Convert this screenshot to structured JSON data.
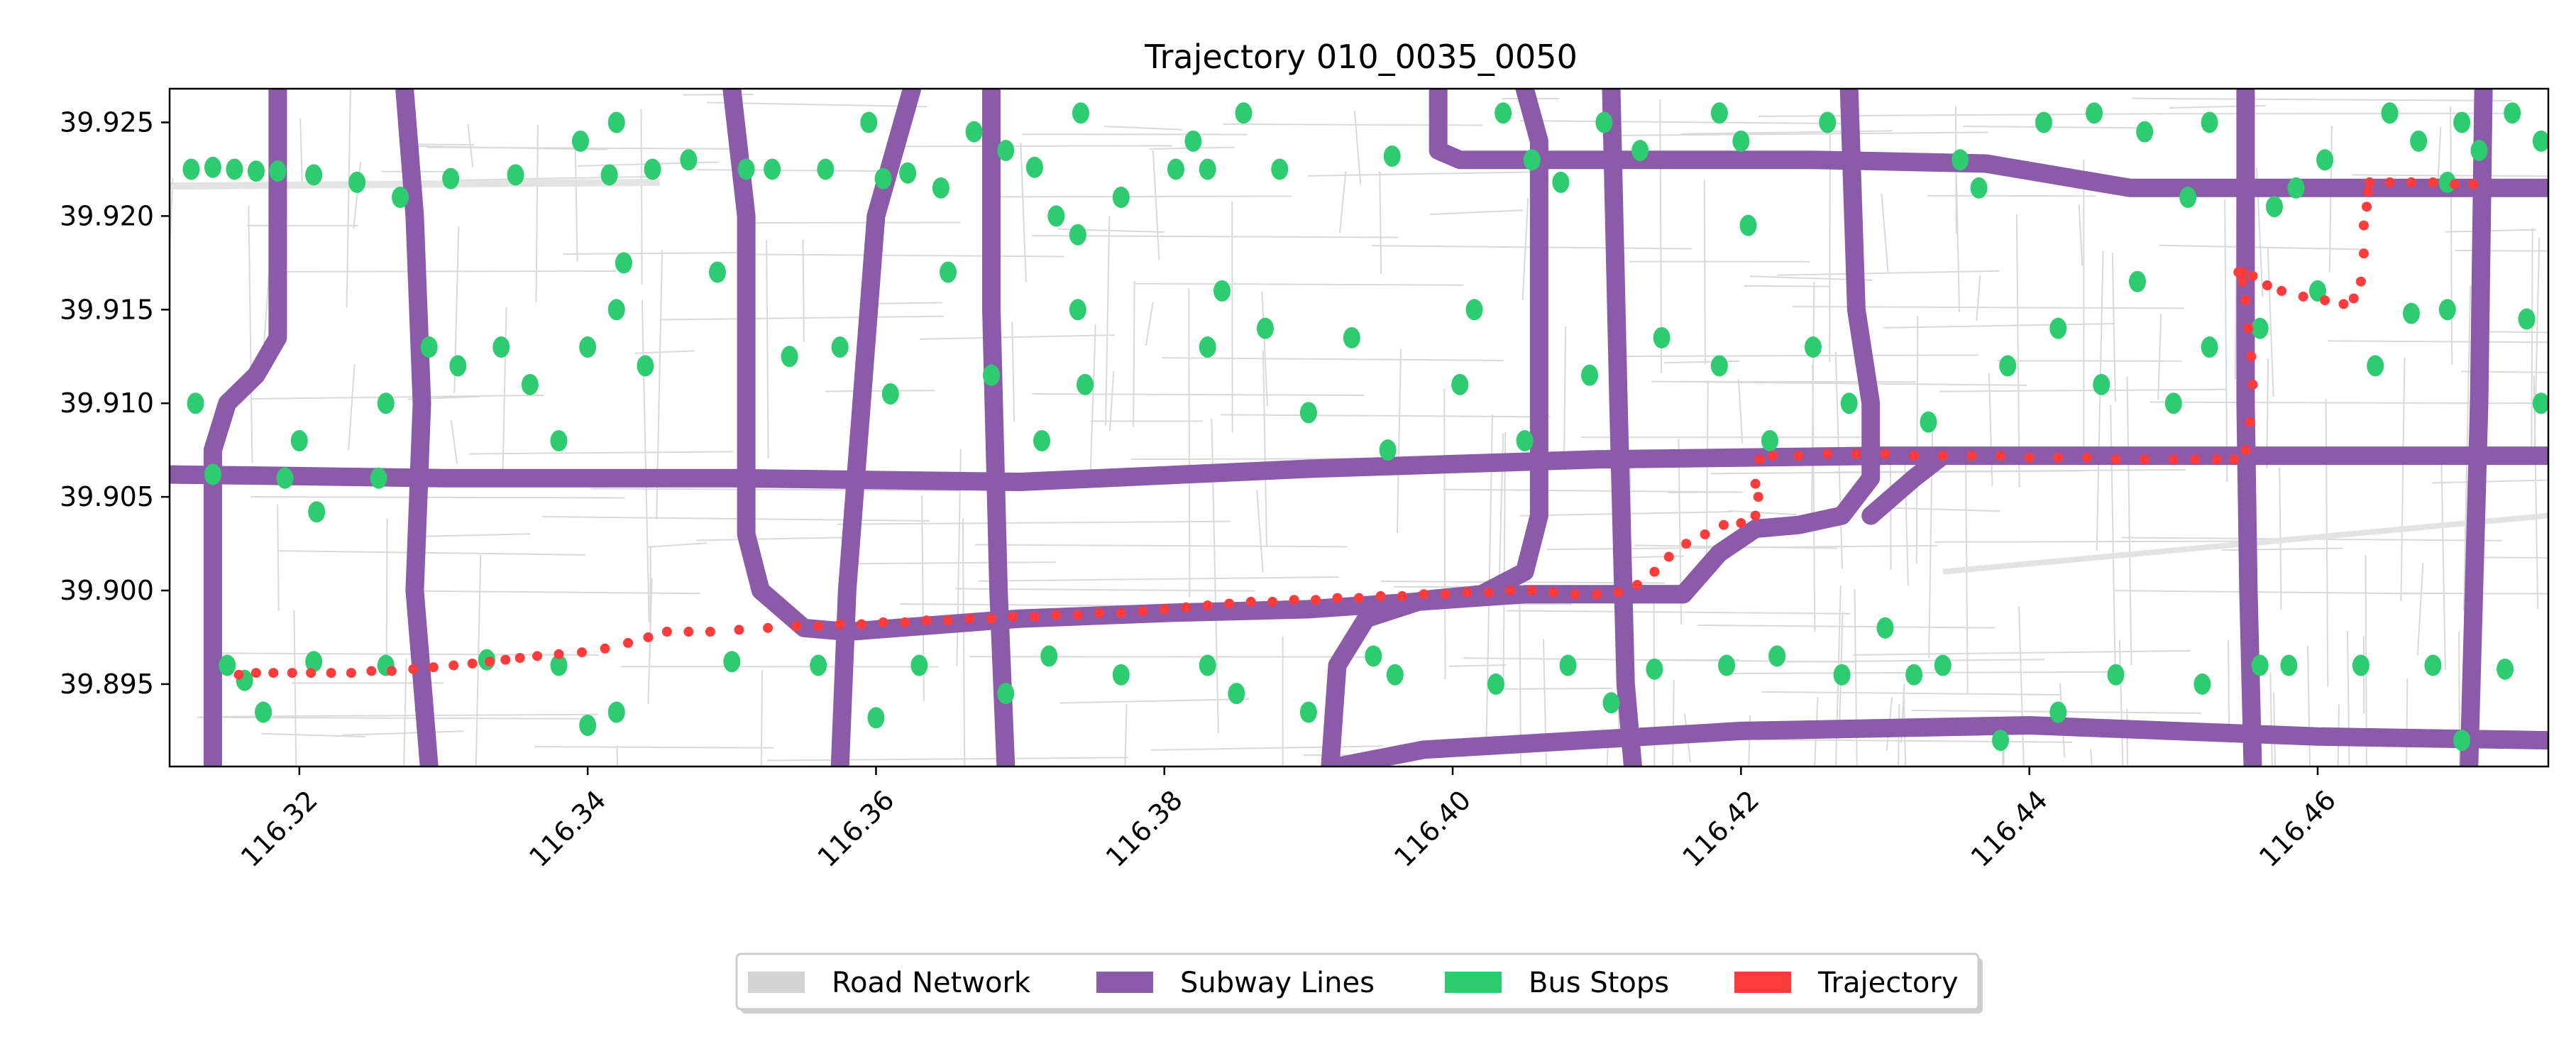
{
  "title": "Trajectory 010_0035_0050",
  "axes": {
    "xlim": [
      116.311,
      116.476
    ],
    "ylim": [
      39.8906,
      39.9268
    ],
    "x_ticks": [
      "116.32",
      "116.34",
      "116.36",
      "116.38",
      "116.40",
      "116.42",
      "116.44",
      "116.46"
    ],
    "x_tick_values": [
      116.32,
      116.34,
      116.36,
      116.38,
      116.4,
      116.42,
      116.44,
      116.46
    ],
    "y_ticks": [
      "39.925",
      "39.920",
      "39.915",
      "39.910",
      "39.905",
      "39.900",
      "39.895"
    ],
    "y_tick_values": [
      39.925,
      39.92,
      39.915,
      39.91,
      39.905,
      39.9,
      39.895
    ],
    "x_tick_rotation_deg": 45
  },
  "legend": {
    "placement": "bottom-center",
    "items": [
      {
        "label": "Road Network",
        "color": "#d3d3d3"
      },
      {
        "label": "Subway Lines",
        "color": "#8b5aa8"
      },
      {
        "label": "Bus Stops",
        "color": "#2ecc71"
      },
      {
        "label": "Trajectory",
        "color": "#ff3b3b"
      }
    ]
  },
  "colors": {
    "road": "#d9d9d9",
    "subway": "#8b5aa8",
    "bus_stop": "#2ecc71",
    "trajectory": "#ff3b3b"
  },
  "chart_data": {
    "type": "scatter",
    "title": "Trajectory 010_0035_0050",
    "xlabel": "",
    "ylabel": "",
    "xlim": [
      116.311,
      116.476
    ],
    "ylim": [
      39.8906,
      39.9268
    ],
    "grid": false,
    "legend_placement": "bottom-center",
    "series": [
      {
        "name": "Subway Lines",
        "kind": "lines",
        "lines": [
          [
            [
              116.3185,
              39.9268
            ],
            [
              116.3185,
              39.9135
            ],
            [
              116.317,
              39.9115
            ],
            [
              116.315,
              39.91
            ],
            [
              116.314,
              39.9075
            ],
            [
              116.314,
              39.8906
            ]
          ],
          [
            [
              116.3273,
              39.9268
            ],
            [
              116.328,
              39.92
            ],
            [
              116.3285,
              39.91
            ],
            [
              116.328,
              39.9
            ],
            [
              116.329,
              39.8906
            ]
          ],
          [
            [
              116.35,
              39.9268
            ],
            [
              116.351,
              39.92
            ],
            [
              116.351,
              39.903
            ],
            [
              116.352,
              39.9
            ],
            [
              116.355,
              39.898
            ],
            [
              116.358,
              39.8978
            ]
          ],
          [
            [
              116.3625,
              39.9268
            ],
            [
              116.36,
              39.92
            ],
            [
              116.359,
              39.91
            ],
            [
              116.358,
              39.9
            ],
            [
              116.3575,
              39.8906
            ]
          ],
          [
            [
              116.368,
              39.9268
            ],
            [
              116.368,
              39.915
            ],
            [
              116.3685,
              39.9
            ],
            [
              116.369,
              39.8906
            ]
          ],
          [
            [
              116.399,
              39.9268
            ],
            [
              116.399,
              39.9235
            ],
            [
              116.4005,
              39.923
            ],
            [
              116.425,
              39.923
            ],
            [
              116.437,
              39.9228
            ],
            [
              116.447,
              39.9215
            ],
            [
              116.476,
              39.9215
            ]
          ],
          [
            [
              116.405,
              39.9268
            ],
            [
              116.406,
              39.924
            ],
            [
              116.406,
              39.904
            ],
            [
              116.405,
              39.901
            ],
            [
              116.402,
              39.8998
            ],
            [
              116.398,
              39.8995
            ],
            [
              116.394,
              39.8985
            ],
            [
              116.392,
              39.896
            ],
            [
              116.3915,
              39.8906
            ]
          ],
          [
            [
              116.411,
              39.9268
            ],
            [
              116.4115,
              39.91
            ],
            [
              116.412,
              39.895
            ],
            [
              116.4125,
              39.8906
            ]
          ],
          [
            [
              116.4275,
              39.9268
            ],
            [
              116.428,
              39.915
            ],
            [
              116.429,
              39.91
            ],
            [
              116.429,
              39.906
            ],
            [
              116.427,
              39.904
            ],
            [
              116.424,
              39.9035
            ],
            [
              116.421,
              39.9033
            ],
            [
              116.4185,
              39.902
            ],
            [
              116.416,
              39.8998
            ]
          ],
          [
            [
              116.455,
              39.9268
            ],
            [
              116.455,
              39.91
            ],
            [
              116.4552,
              39.9
            ],
            [
              116.4555,
              39.8906
            ]
          ],
          [
            [
              116.4715,
              39.9268
            ],
            [
              116.4712,
              39.91
            ],
            [
              116.4705,
              39.8906
            ]
          ],
          [
            [
              116.311,
              39.9062
            ],
            [
              116.33,
              39.906
            ],
            [
              116.35,
              39.906
            ],
            [
              116.37,
              39.9058
            ],
            [
              116.39,
              39.9065
            ],
            [
              116.41,
              39.907
            ],
            [
              116.43,
              39.9072
            ],
            [
              116.45,
              39.9072
            ],
            [
              116.476,
              39.9072
            ]
          ],
          [
            [
              116.358,
              39.8978
            ],
            [
              116.37,
              39.8985
            ],
            [
              116.38,
              39.8988
            ],
            [
              116.39,
              39.899
            ],
            [
              116.405,
              39.8998
            ],
            [
              116.416,
              39.8998
            ]
          ],
          [
            [
              116.416,
              39.8998
            ],
            [
              116.412,
              39.8998
            ]
          ],
          [
            [
              116.429,
              39.904
            ],
            [
              116.432,
              39.906
            ],
            [
              116.434,
              39.9072
            ]
          ],
          [
            [
              116.392,
              39.8906
            ],
            [
              116.398,
              39.8915
            ],
            [
              116.42,
              39.8925
            ],
            [
              116.44,
              39.8928
            ],
            [
              116.46,
              39.8922
            ],
            [
              116.476,
              39.892
            ]
          ]
        ]
      },
      {
        "name": "Trajectory",
        "kind": "points",
        "x": [
          116.3158,
          116.317,
          116.3182,
          116.3195,
          116.3208,
          116.3222,
          116.3236,
          116.325,
          116.3264,
          116.3279,
          116.3293,
          116.3307,
          116.332,
          116.3332,
          116.3343,
          116.3353,
          116.3365,
          116.338,
          116.3396,
          116.3412,
          116.3428,
          116.3442,
          116.3455,
          116.347,
          116.3485,
          116.3505,
          116.3525,
          116.3545,
          116.356,
          116.3575,
          116.359,
          116.3605,
          116.362,
          116.3635,
          116.365,
          116.3665,
          116.368,
          116.3695,
          116.371,
          116.3725,
          116.374,
          116.3755,
          116.377,
          116.3785,
          116.38,
          116.3815,
          116.383,
          116.3845,
          116.386,
          116.3875,
          116.389,
          116.3905,
          116.392,
          116.3935,
          116.395,
          116.3965,
          116.398,
          116.3995,
          116.401,
          116.4025,
          116.404,
          116.4055,
          116.407,
          116.4085,
          116.41,
          116.4115,
          116.4128,
          116.414,
          116.415,
          116.4162,
          116.4175,
          116.4188,
          116.42,
          116.421,
          116.4212,
          116.421,
          116.4213,
          116.4222,
          116.424,
          116.426,
          116.428,
          116.43,
          116.432,
          116.434,
          116.436,
          116.438,
          116.44,
          116.442,
          116.444,
          116.446,
          116.448,
          116.45,
          116.4515,
          116.453,
          116.4542,
          116.455,
          116.4553,
          116.4555,
          116.4554,
          116.4552,
          116.455,
          116.4548,
          116.4546,
          116.4545,
          116.4546,
          116.4548,
          116.4555,
          116.4565,
          116.4575,
          116.459,
          116.4605,
          116.4618,
          116.4625,
          116.463,
          116.4632,
          116.4632,
          116.4634,
          116.4635,
          116.4636,
          116.465,
          116.4665,
          116.468,
          116.4695,
          116.4708
        ],
        "y": [
          39.8955,
          39.8956,
          39.8956,
          39.8956,
          39.8956,
          39.8956,
          39.8956,
          39.8957,
          39.8957,
          39.8958,
          39.8959,
          39.896,
          39.8961,
          39.8962,
          39.8963,
          39.8964,
          39.8965,
          39.8966,
          39.8967,
          39.8969,
          39.8972,
          39.8975,
          39.8978,
          39.8978,
          39.8978,
          39.8979,
          39.898,
          39.8981,
          39.8981,
          39.8982,
          39.8982,
          39.8983,
          39.8983,
          39.8984,
          39.8984,
          39.8985,
          39.8985,
          39.8986,
          39.8986,
          39.8987,
          39.8987,
          39.8988,
          39.8988,
          39.8989,
          39.899,
          39.8991,
          39.8992,
          39.8993,
          39.8994,
          39.8994,
          39.8995,
          39.8995,
          39.8996,
          39.8996,
          39.8997,
          39.8997,
          39.8998,
          39.8998,
          39.8999,
          39.8999,
          39.9,
          39.9,
          39.8999,
          39.8998,
          39.8998,
          39.8999,
          39.9003,
          39.901,
          39.9018,
          39.9025,
          39.903,
          39.9035,
          39.9036,
          39.904,
          39.905,
          39.9057,
          39.907,
          39.9072,
          39.9072,
          39.9073,
          39.9073,
          39.9073,
          39.9072,
          39.9072,
          39.9072,
          39.9072,
          39.9071,
          39.9071,
          39.9071,
          39.907,
          39.907,
          39.907,
          39.907,
          39.907,
          39.907,
          39.9075,
          39.909,
          39.911,
          39.9125,
          39.914,
          39.9155,
          39.9165,
          39.917,
          39.917,
          39.917,
          39.917,
          39.9168,
          39.9163,
          39.916,
          39.9157,
          39.9155,
          39.9153,
          39.9156,
          39.9165,
          39.918,
          39.9195,
          39.9205,
          39.9213,
          39.9218,
          39.9218,
          39.9218,
          39.9218,
          39.9217,
          39.9217
        ]
      },
      {
        "name": "Bus Stops",
        "kind": "points",
        "x": [
          116.3125,
          116.314,
          116.3155,
          116.317,
          116.3185,
          116.321,
          116.324,
          116.327,
          116.3305,
          116.335,
          116.3395,
          116.3415,
          116.342,
          116.3445,
          116.347,
          116.349,
          116.351,
          116.3528,
          116.3565,
          116.3595,
          116.3605,
          116.3622,
          116.3645,
          116.3668,
          116.369,
          116.371,
          116.3725,
          116.374,
          116.3742,
          116.377,
          116.3808,
          116.382,
          116.383,
          116.3855,
          116.388,
          116.3958,
          116.4035,
          116.4055,
          116.4075,
          116.4105,
          116.413,
          116.4185,
          116.42,
          116.4205,
          116.426,
          116.4352,
          116.4365,
          116.441,
          116.4445,
          116.448,
          116.451,
          116.4525,
          116.457,
          116.4585,
          116.4605,
          116.465,
          116.467,
          116.469,
          116.47,
          116.4712,
          116.4735,
          116.4755,
          116.3128,
          116.314,
          116.319,
          116.32,
          116.3212,
          116.3255,
          116.326,
          116.329,
          116.331,
          116.334,
          116.336,
          116.338,
          116.34,
          116.342,
          116.3425,
          116.344,
          116.354,
          116.3575,
          116.361,
          116.365,
          116.368,
          116.3715,
          116.374,
          116.3745,
          116.383,
          116.384,
          116.387,
          116.39,
          116.393,
          116.3955,
          116.4005,
          116.4015,
          116.405,
          116.4095,
          116.4145,
          116.4185,
          116.422,
          116.425,
          116.4275,
          116.433,
          116.4385,
          116.442,
          116.445,
          116.4475,
          116.45,
          116.4525,
          116.456,
          116.46,
          116.464,
          116.4665,
          116.469,
          116.4745,
          116.4755,
          116.315,
          116.3162,
          116.3175,
          116.321,
          116.326,
          116.333,
          116.338,
          116.34,
          116.342,
          116.35,
          116.356,
          116.36,
          116.363,
          116.369,
          116.372,
          116.377,
          116.383,
          116.385,
          116.39,
          116.3945,
          116.396,
          116.403,
          116.408,
          116.411,
          116.414,
          116.419,
          116.4225,
          116.427,
          116.43,
          116.432,
          116.434,
          116.438,
          116.442,
          116.446,
          116.452,
          116.456,
          116.458,
          116.463,
          116.468,
          116.47,
          116.473
        ],
        "y": [
          39.9225,
          39.9226,
          39.9225,
          39.9224,
          39.9224,
          39.9222,
          39.9218,
          39.921,
          39.922,
          39.9222,
          39.924,
          39.9222,
          39.925,
          39.9225,
          39.923,
          39.917,
          39.9225,
          39.9225,
          39.9225,
          39.925,
          39.922,
          39.9223,
          39.9215,
          39.9245,
          39.9235,
          39.9226,
          39.92,
          39.919,
          39.9255,
          39.921,
          39.9225,
          39.924,
          39.9225,
          39.9255,
          39.9225,
          39.9232,
          39.9255,
          39.923,
          39.9218,
          39.925,
          39.9235,
          39.9255,
          39.924,
          39.9195,
          39.925,
          39.923,
          39.9215,
          39.925,
          39.9255,
          39.9245,
          39.921,
          39.925,
          39.9205,
          39.9215,
          39.923,
          39.9255,
          39.924,
          39.9218,
          39.925,
          39.9235,
          39.9255,
          39.924,
          39.91,
          39.9062,
          39.906,
          39.908,
          39.9042,
          39.906,
          39.91,
          39.913,
          39.912,
          39.913,
          39.911,
          39.908,
          39.913,
          39.915,
          39.9175,
          39.912,
          39.9125,
          39.913,
          39.9105,
          39.917,
          39.9115,
          39.908,
          39.915,
          39.911,
          39.913,
          39.916,
          39.914,
          39.9095,
          39.9135,
          39.9075,
          39.911,
          39.915,
          39.908,
          39.9115,
          39.9135,
          39.912,
          39.908,
          39.913,
          39.91,
          39.909,
          39.912,
          39.914,
          39.911,
          39.9165,
          39.91,
          39.913,
          39.914,
          39.916,
          39.912,
          39.9148,
          39.915,
          39.9145,
          39.91,
          39.896,
          39.8952,
          39.8935,
          39.8962,
          39.896,
          39.8963,
          39.896,
          39.8928,
          39.8935,
          39.8962,
          39.896,
          39.8932,
          39.896,
          39.8945,
          39.8965,
          39.8955,
          39.896,
          39.8945,
          39.8935,
          39.8965,
          39.8955,
          39.895,
          39.896,
          39.894,
          39.8958,
          39.896,
          39.8965,
          39.8955,
          39.898,
          39.8955,
          39.896,
          39.892,
          39.8935,
          39.8955,
          39.895,
          39.896,
          39.896,
          39.896,
          39.896,
          39.892,
          39.8958
        ]
      }
    ]
  }
}
